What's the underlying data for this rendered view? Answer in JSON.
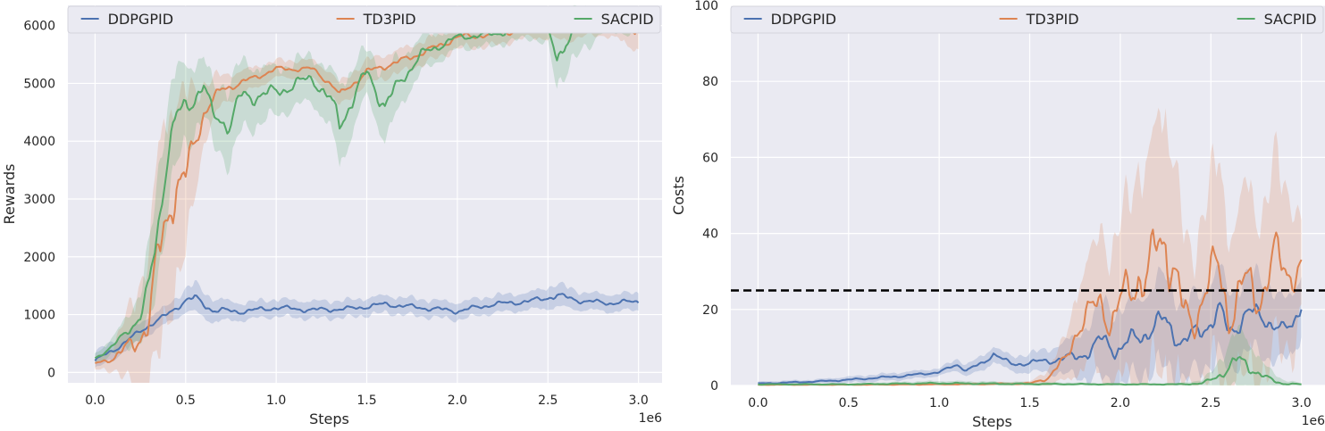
{
  "chart_data": [
    {
      "type": "line",
      "xlabel": "Steps",
      "ylabel": "Rewards",
      "x_offset_label": "1e6",
      "xlim": [
        -0.15,
        3.13
      ],
      "ylim": [
        -180,
        6350
      ],
      "xticks": [
        0.0,
        0.5,
        1.0,
        1.5,
        2.0,
        2.5,
        3.0
      ],
      "xtick_labels": [
        "0.0",
        "0.5",
        "1.0",
        "1.5",
        "2.0",
        "2.5",
        "3.0"
      ],
      "yticks": [
        0,
        1000,
        2000,
        3000,
        4000,
        5000,
        6000
      ],
      "ytick_labels": [
        "0",
        "1000",
        "2000",
        "3000",
        "4000",
        "5000",
        "6000"
      ],
      "grid": true,
      "legend": {
        "placement": "top",
        "entries": [
          "DDPGPID",
          "TD3PID",
          "SACPID"
        ]
      },
      "series": [
        {
          "name": "DDPGPID",
          "color": "#4c72b0",
          "x": [
            0.0,
            0.1,
            0.2,
            0.3,
            0.4,
            0.5,
            0.55,
            0.65,
            0.8,
            1.0,
            1.2,
            1.4,
            1.6,
            1.8,
            2.0,
            2.2,
            2.4,
            2.55,
            2.7,
            2.85,
            3.0
          ],
          "y": [
            200,
            380,
            600,
            820,
            1000,
            1250,
            1280,
            1080,
            1050,
            1120,
            1080,
            1100,
            1180,
            1120,
            1060,
            1180,
            1230,
            1330,
            1230,
            1200,
            1230
          ],
          "band": [
            150,
            150,
            150,
            150,
            150,
            200,
            250,
            200,
            150,
            150,
            150,
            150,
            150,
            150,
            150,
            150,
            150,
            200,
            150,
            150,
            150
          ]
        },
        {
          "name": "TD3PID",
          "color": "#dd8452",
          "x": [
            0.0,
            0.1,
            0.2,
            0.3,
            0.35,
            0.42,
            0.5,
            0.55,
            0.6,
            0.7,
            0.8,
            1.0,
            1.2,
            1.3,
            1.35,
            1.5,
            1.7,
            1.9,
            2.0,
            2.2,
            2.4,
            2.6,
            2.8,
            3.0
          ],
          "y": [
            150,
            250,
            450,
            900,
            2000,
            3100,
            3300,
            4000,
            4500,
            4900,
            5000,
            5250,
            5250,
            5000,
            4800,
            5200,
            5400,
            5650,
            5800,
            5850,
            5950,
            5950,
            6050,
            5950
          ],
          "band": [
            100,
            200,
            700,
            1200,
            1800,
            1700,
            1400,
            900,
            500,
            250,
            200,
            150,
            150,
            200,
            200,
            200,
            200,
            200,
            200,
            200,
            150,
            200,
            200,
            350
          ]
        },
        {
          "name": "SACPID",
          "color": "#55a868",
          "x": [
            0.0,
            0.1,
            0.2,
            0.25,
            0.3,
            0.35,
            0.4,
            0.45,
            0.5,
            0.6,
            0.65,
            0.75,
            0.8,
            1.0,
            1.2,
            1.3,
            1.35,
            1.5,
            1.6,
            1.7,
            1.8,
            2.0,
            2.2,
            2.4,
            2.5,
            2.55,
            2.6,
            2.8,
            3.0
          ],
          "y": [
            250,
            450,
            800,
            950,
            1500,
            2600,
            3800,
            4400,
            4600,
            4950,
            4450,
            4300,
            4750,
            4850,
            5100,
            4700,
            4300,
            5200,
            4600,
            5100,
            5500,
            5800,
            5850,
            6000,
            5900,
            5450,
            5750,
            6100,
            6000
          ],
          "band": [
            80,
            150,
            300,
            400,
            700,
            900,
            900,
            800,
            700,
            500,
            500,
            700,
            600,
            400,
            400,
            500,
            700,
            400,
            600,
            400,
            300,
            200,
            200,
            200,
            250,
            500,
            500,
            200,
            150
          ]
        }
      ]
    },
    {
      "type": "line",
      "xlabel": "Steps",
      "ylabel": "Costs",
      "x_offset_label": "1e6",
      "xlim": [
        -0.15,
        3.13
      ],
      "ylim": [
        0,
        100
      ],
      "xticks": [
        0.0,
        0.5,
        1.0,
        1.5,
        2.0,
        2.5,
        3.0
      ],
      "xtick_labels": [
        "0.0",
        "0.5",
        "1.0",
        "1.5",
        "2.0",
        "2.5",
        "3.0"
      ],
      "yticks": [
        0,
        20,
        40,
        60,
        80,
        100
      ],
      "ytick_labels": [
        "0",
        "20",
        "40",
        "60",
        "80",
        "100"
      ],
      "grid": true,
      "legend": {
        "placement": "top",
        "entries": [
          "DDPGPID",
          "TD3PID",
          "SACPID"
        ]
      },
      "threshold": {
        "y": 25,
        "style": "dashed",
        "color": "#000000"
      },
      "series": [
        {
          "name": "DDPGPID",
          "color": "#4c72b0",
          "x": [
            0.0,
            0.3,
            0.5,
            0.8,
            1.0,
            1.1,
            1.15,
            1.25,
            1.3,
            1.4,
            1.6,
            1.75,
            1.85,
            1.9,
            2.0,
            2.1,
            2.25,
            2.35,
            2.45,
            2.55,
            2.6,
            2.7,
            2.8,
            2.9,
            2.95,
            3.0
          ],
          "y": [
            0.5,
            1.0,
            1.5,
            2.5,
            3.5,
            5.5,
            4.0,
            6.0,
            8.5,
            5.5,
            6.5,
            7.5,
            9.5,
            12.0,
            9.5,
            13.0,
            17.0,
            11.0,
            15.0,
            19.0,
            14.0,
            19.0,
            18.0,
            14.0,
            16.0,
            22.0
          ],
          "band": [
            0.5,
            0.5,
            0.8,
            1,
            1,
            1.5,
            1.5,
            2,
            2,
            2,
            3,
            5,
            8,
            10,
            10,
            10,
            12,
            10,
            10,
            12,
            10,
            10,
            10,
            8,
            8,
            8
          ]
        },
        {
          "name": "TD3PID",
          "color": "#dd8452",
          "x": [
            0.0,
            0.5,
            1.0,
            1.5,
            1.6,
            1.7,
            1.75,
            1.85,
            1.9,
            1.95,
            2.0,
            2.05,
            2.1,
            2.15,
            2.2,
            2.25,
            2.3,
            2.35,
            2.4,
            2.45,
            2.5,
            2.55,
            2.6,
            2.65,
            2.7,
            2.75,
            2.8,
            2.85,
            2.9,
            2.95,
            3.0
          ],
          "y": [
            0.2,
            0.2,
            0.3,
            0.5,
            2.0,
            7.0,
            14.0,
            20.0,
            23.0,
            16.0,
            21.0,
            26.0,
            30.0,
            27.0,
            36.0,
            40.0,
            30.0,
            18.0,
            16.0,
            24.0,
            28.0,
            30.0,
            19.0,
            23.0,
            27.0,
            24.0,
            26.0,
            33.0,
            32.0,
            30.0,
            31.0
          ],
          "band": [
            0.2,
            0.2,
            0.3,
            0.5,
            2,
            6,
            10,
            15,
            20,
            18,
            20,
            25,
            30,
            28,
            32,
            35,
            30,
            20,
            18,
            22,
            25,
            28,
            22,
            22,
            25,
            22,
            22,
            25,
            22,
            20,
            12
          ]
        },
        {
          "name": "SACPID",
          "color": "#55a868",
          "x": [
            0.0,
            0.5,
            1.0,
            1.5,
            2.0,
            2.3,
            2.45,
            2.5,
            2.55,
            2.6,
            2.65,
            2.7,
            2.75,
            2.8,
            2.9,
            3.0
          ],
          "y": [
            0.3,
            0.3,
            0.6,
            0.4,
            0.3,
            0.3,
            0.5,
            1.5,
            3.0,
            4.5,
            6.5,
            6.0,
            3.5,
            2.0,
            0.5,
            0.3
          ],
          "band": [
            0.3,
            0.3,
            0.6,
            0.5,
            0.3,
            0.3,
            0.8,
            2,
            4,
            6,
            8,
            7,
            5,
            3,
            1,
            0.3
          ]
        }
      ]
    }
  ]
}
